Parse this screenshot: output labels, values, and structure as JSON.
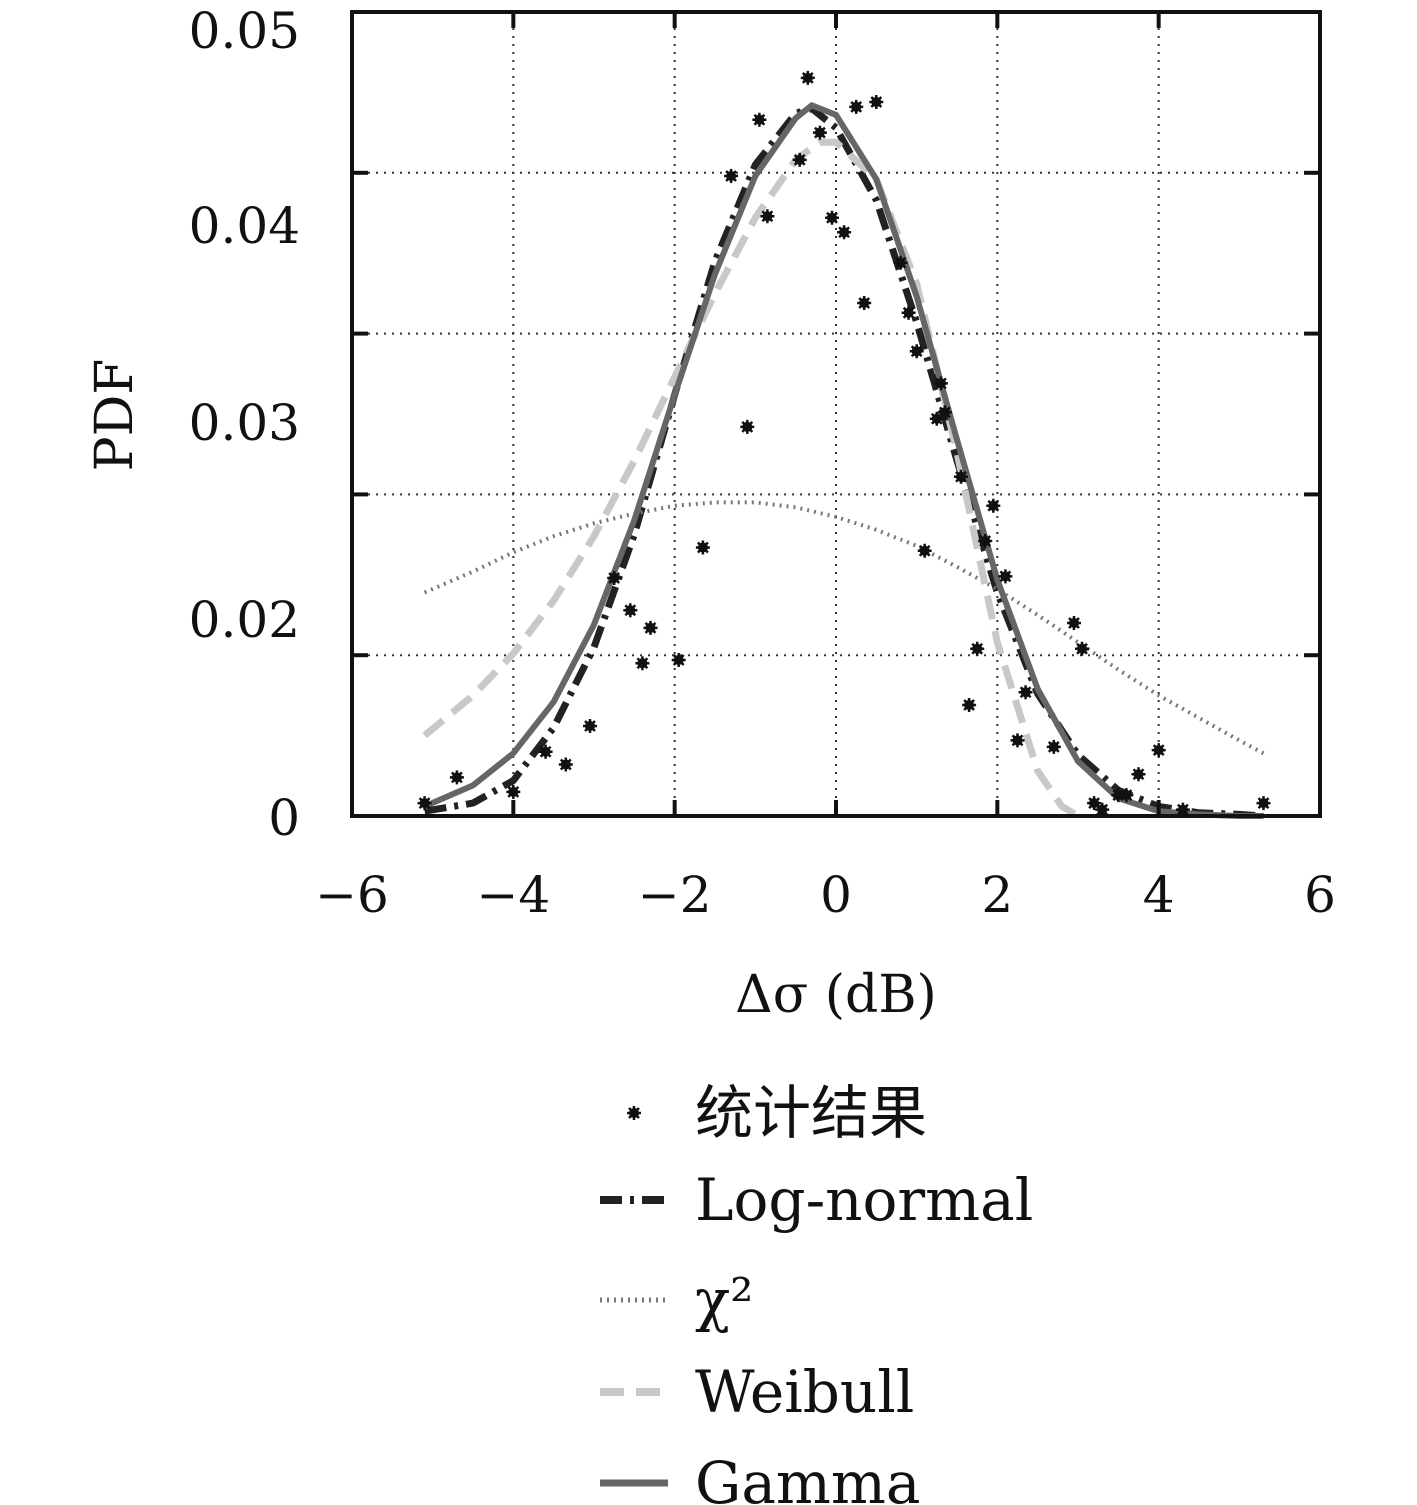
{
  "chart_data": {
    "type": "scatter",
    "xlabel": "Δσ (dB)",
    "ylabel": "PDF",
    "xlim": [
      -6,
      6
    ],
    "ylim": [
      0,
      0.05
    ],
    "x_ticks": [
      -6,
      -4,
      -2,
      0,
      2,
      4,
      6
    ],
    "x_tick_labels": [
      "−6",
      "−4",
      "−2",
      "0",
      "2",
      "4",
      "6"
    ],
    "y_ticks": [
      0,
      0.01,
      0.02,
      0.03,
      0.04,
      0.05
    ],
    "y_tick_labels": [
      "0",
      "",
      "0.02",
      "0.03",
      "0.04",
      "0.05"
    ],
    "y_tick_labels_offset": [
      "0",
      "0.02",
      "0.03",
      "0.04",
      "0.05"
    ],
    "grid": true,
    "legend_position": "below",
    "legend": [
      "统计结果",
      "Log-normal",
      "χ²",
      "Weibull",
      "Gamma"
    ],
    "series": [
      {
        "name": "统计结果",
        "kind": "points",
        "color": "#111111",
        "x": [
          -5.1,
          -4.7,
          -4.0,
          -3.6,
          -3.35,
          -3.05,
          -2.75,
          -2.55,
          -2.4,
          -2.3,
          -1.95,
          -1.65,
          -1.3,
          -1.1,
          -0.95,
          -0.85,
          -0.45,
          -0.35,
          -0.2,
          -0.05,
          0.1,
          0.25,
          0.35,
          0.5,
          0.8,
          0.9,
          1.0,
          1.1,
          1.25,
          1.3,
          1.35,
          1.55,
          1.65,
          1.75,
          1.85,
          1.95,
          2.1,
          2.25,
          2.35,
          2.7,
          2.95,
          3.05,
          3.2,
          3.3,
          3.5,
          3.6,
          3.75,
          4.0,
          4.3,
          5.3
        ],
        "y": [
          0.0008,
          0.0024,
          0.0015,
          0.004,
          0.0032,
          0.0056,
          0.0148,
          0.0128,
          0.0095,
          0.0117,
          0.0097,
          0.0167,
          0.0398,
          0.0242,
          0.0433,
          0.0373,
          0.0408,
          0.0459,
          0.0425,
          0.0372,
          0.0363,
          0.0441,
          0.0319,
          0.0444,
          0.0344,
          0.0313,
          0.0289,
          0.0165,
          0.0247,
          0.0269,
          0.0251,
          0.0211,
          0.0069,
          0.0104,
          0.0171,
          0.0193,
          0.0149,
          0.0047,
          0.0077,
          0.0043,
          0.012,
          0.0104,
          0.0008,
          0.0004,
          0.0013,
          0.0013,
          0.0026,
          0.0041,
          0.0004,
          0.0008
        ]
      },
      {
        "name": "Log-normal",
        "kind": "line",
        "dash": "dashdot",
        "color": "#222222",
        "x": [
          -5.1,
          -4.5,
          -4.0,
          -3.5,
          -3.0,
          -2.5,
          -2.0,
          -1.5,
          -1.0,
          -0.5,
          -0.3,
          0.0,
          0.5,
          1.0,
          1.5,
          2.0,
          2.5,
          3.0,
          3.5,
          4.0,
          4.5,
          5.0,
          5.3
        ],
        "y": [
          0.0003,
          0.0008,
          0.0022,
          0.0055,
          0.0105,
          0.0175,
          0.0262,
          0.0345,
          0.0405,
          0.0437,
          0.044,
          0.0428,
          0.0383,
          0.0307,
          0.0221,
          0.0139,
          0.0076,
          0.0038,
          0.0016,
          0.0006,
          0.0002,
          0.0001,
          0.0
        ]
      },
      {
        "name": "χ²",
        "kind": "line",
        "dash": "dotted",
        "color": "#777777",
        "x": [
          -5.1,
          -4.5,
          -4.0,
          -3.5,
          -3.0,
          -2.5,
          -2.0,
          -1.5,
          -1.0,
          -0.5,
          0.0,
          0.5,
          1.0,
          1.5,
          2.0,
          2.5,
          3.0,
          3.5,
          4.0,
          4.5,
          5.0,
          5.3
        ],
        "y": [
          0.0139,
          0.0152,
          0.0164,
          0.0174,
          0.0182,
          0.0188,
          0.0193,
          0.0195,
          0.0195,
          0.0192,
          0.0186,
          0.0178,
          0.0168,
          0.0155,
          0.0141,
          0.0125,
          0.0108,
          0.0091,
          0.0075,
          0.0061,
          0.0047,
          0.0039
        ]
      },
      {
        "name": "Weibull",
        "kind": "line",
        "dash": "dashed",
        "color": "#c8c8c8",
        "x": [
          -5.1,
          -4.5,
          -4.0,
          -3.5,
          -3.0,
          -2.5,
          -2.0,
          -1.5,
          -1.0,
          -0.5,
          -0.2,
          0.0,
          0.5,
          1.0,
          1.5,
          2.0,
          2.5,
          2.8,
          3.0
        ],
        "y": [
          0.005,
          0.0075,
          0.0101,
          0.0134,
          0.0174,
          0.0221,
          0.0273,
          0.0325,
          0.0372,
          0.0408,
          0.0419,
          0.0419,
          0.0396,
          0.0331,
          0.0226,
          0.0108,
          0.0028,
          0.0006,
          0.0
        ]
      },
      {
        "name": "Gamma",
        "kind": "line",
        "dash": "solid",
        "color": "#666666",
        "x": [
          -5.1,
          -4.5,
          -4.0,
          -3.5,
          -3.0,
          -2.5,
          -2.0,
          -1.5,
          -1.0,
          -0.5,
          -0.3,
          0.0,
          0.5,
          1.0,
          1.5,
          2.0,
          2.5,
          3.0,
          3.5,
          4.0,
          4.5,
          5.0,
          5.3
        ],
        "y": [
          0.0006,
          0.0019,
          0.0039,
          0.0071,
          0.0119,
          0.0184,
          0.0262,
          0.0337,
          0.0398,
          0.0434,
          0.0442,
          0.0436,
          0.0396,
          0.0323,
          0.0234,
          0.0147,
          0.0079,
          0.0034,
          0.0011,
          0.0003,
          0.0001,
          0.0,
          0.0
        ]
      }
    ]
  }
}
